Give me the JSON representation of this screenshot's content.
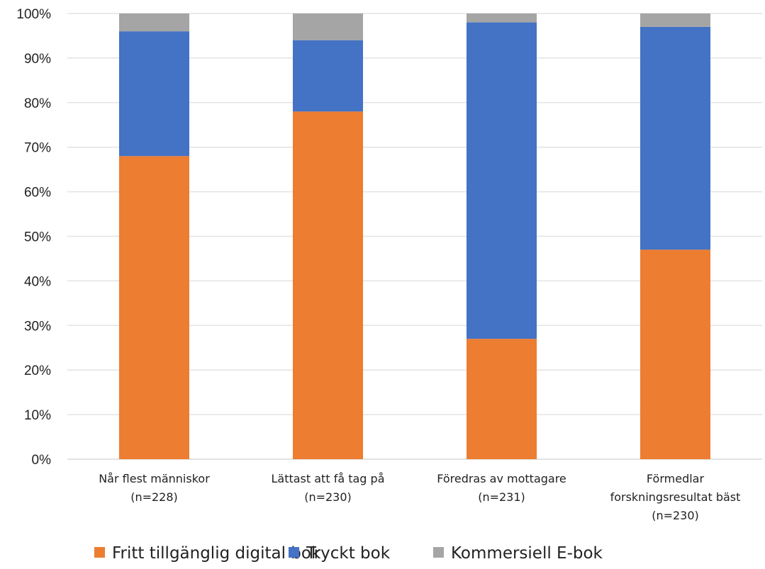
{
  "chart_data": {
    "type": "bar",
    "stacked": true,
    "title": "",
    "xlabel": "",
    "ylabel": "",
    "ylim": [
      0,
      100
    ],
    "y_ticks": [
      "0%",
      "10%",
      "20%",
      "30%",
      "40%",
      "50%",
      "60%",
      "70%",
      "80%",
      "90%",
      "100%"
    ],
    "categories": [
      [
        "Når flest människor",
        "(n=228)"
      ],
      [
        "Lättast att få tag på",
        "(n=230)"
      ],
      [
        "Föredras av mottagare",
        "(n=231)"
      ],
      [
        "Förmedlar",
        "forskningsresultat bäst",
        "(n=230)"
      ]
    ],
    "series": [
      {
        "name": "Fritt tillgänglig digital bok",
        "color": "#ED7D31",
        "values": [
          68,
          78,
          27,
          47
        ]
      },
      {
        "name": "Tryckt bok",
        "color": "#4472C4",
        "values": [
          28,
          16,
          71,
          50
        ]
      },
      {
        "name": "Kommersiell E-bok",
        "color": "#A5A5A5",
        "values": [
          4,
          6,
          2,
          3
        ]
      }
    ],
    "grid": true,
    "legend_position": "bottom"
  }
}
